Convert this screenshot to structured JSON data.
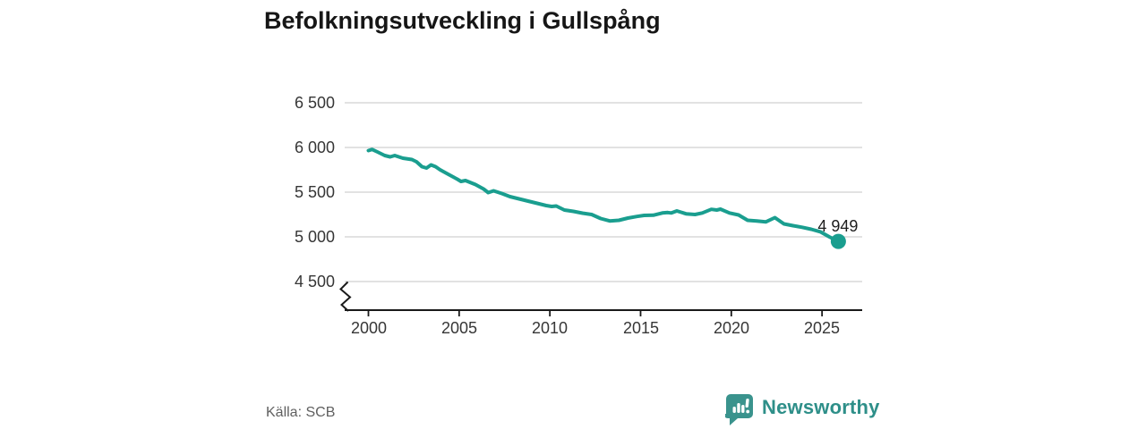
{
  "title": "Befolkningsutveckling i Gullspång",
  "source": "Källa: SCB",
  "branding": {
    "logo_text": "Newsworthy",
    "logo_icon": "newsworthy-speech-bubble-bar-chart-icon",
    "brand_color": "#2E8F89"
  },
  "chart_data": {
    "type": "line",
    "title": "Befolkningsutveckling i Gullspång",
    "xlabel": "",
    "ylabel": "",
    "x_ticks": [
      "2000",
      "2005",
      "2010",
      "2015",
      "2020",
      "2025"
    ],
    "x_tick_years": [
      2000,
      2005,
      2010,
      2015,
      2020,
      2025
    ],
    "y_ticks": [
      "6 500",
      "6 000",
      "5 500",
      "5 000",
      "4 500"
    ],
    "y_tick_values": [
      6500,
      6000,
      5500,
      5000,
      4500
    ],
    "xlim": [
      1998.7,
      2027.3
    ],
    "ylim": [
      4500,
      6500
    ],
    "axis_break": true,
    "grid": "horizontal",
    "line_color": "#1A9E8F",
    "grid_color": "#D9D9D9",
    "axis_color": "#1A1A1A",
    "end_label": "4 949",
    "end_point": [
      2025.9,
      4949
    ],
    "series": [
      {
        "name": "Befolkning",
        "points": [
          [
            2000.0,
            5965
          ],
          [
            2000.2,
            5978
          ],
          [
            2000.5,
            5950
          ],
          [
            2000.9,
            5910
          ],
          [
            2001.2,
            5895
          ],
          [
            2001.45,
            5910
          ],
          [
            2001.9,
            5880
          ],
          [
            2002.4,
            5865
          ],
          [
            2002.65,
            5840
          ],
          [
            2002.95,
            5785
          ],
          [
            2003.2,
            5770
          ],
          [
            2003.45,
            5805
          ],
          [
            2003.7,
            5785
          ],
          [
            2003.95,
            5750
          ],
          [
            2004.4,
            5700
          ],
          [
            2004.9,
            5645
          ],
          [
            2005.1,
            5620
          ],
          [
            2005.35,
            5630
          ],
          [
            2005.9,
            5585
          ],
          [
            2006.35,
            5535
          ],
          [
            2006.6,
            5495
          ],
          [
            2006.9,
            5515
          ],
          [
            2007.35,
            5485
          ],
          [
            2007.8,
            5450
          ],
          [
            2008.3,
            5425
          ],
          [
            2008.8,
            5400
          ],
          [
            2009.3,
            5375
          ],
          [
            2009.8,
            5350
          ],
          [
            2010.1,
            5340
          ],
          [
            2010.35,
            5345
          ],
          [
            2010.8,
            5300
          ],
          [
            2011.3,
            5285
          ],
          [
            2011.8,
            5265
          ],
          [
            2012.3,
            5250
          ],
          [
            2012.8,
            5205
          ],
          [
            2013.3,
            5178
          ],
          [
            2013.8,
            5185
          ],
          [
            2014.3,
            5210
          ],
          [
            2014.8,
            5228
          ],
          [
            2015.2,
            5240
          ],
          [
            2015.7,
            5242
          ],
          [
            2016.2,
            5267
          ],
          [
            2016.5,
            5272
          ],
          [
            2016.7,
            5267
          ],
          [
            2017.0,
            5290
          ],
          [
            2017.5,
            5258
          ],
          [
            2018.0,
            5250
          ],
          [
            2018.4,
            5267
          ],
          [
            2018.9,
            5308
          ],
          [
            2019.2,
            5300
          ],
          [
            2019.4,
            5310
          ],
          [
            2019.9,
            5267
          ],
          [
            2020.4,
            5245
          ],
          [
            2020.9,
            5185
          ],
          [
            2021.4,
            5178
          ],
          [
            2021.9,
            5167
          ],
          [
            2022.4,
            5215
          ],
          [
            2022.9,
            5145
          ],
          [
            2023.4,
            5125
          ],
          [
            2023.9,
            5107
          ],
          [
            2024.4,
            5085
          ],
          [
            2024.9,
            5057
          ],
          [
            2025.4,
            5000
          ],
          [
            2025.9,
            4949
          ]
        ]
      }
    ]
  }
}
